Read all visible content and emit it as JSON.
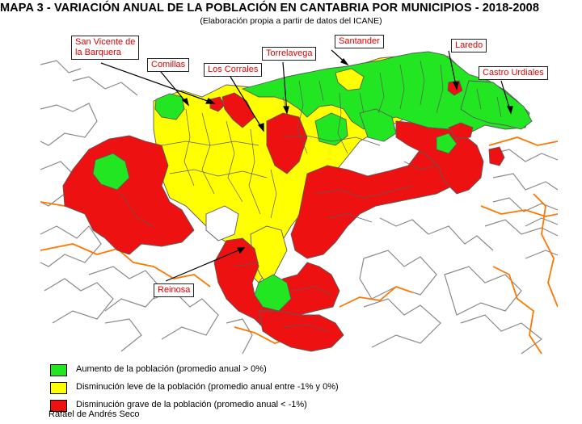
{
  "title": "MAPA 3 - VARIACIÓN ANUAL DE LA POBLACIÓN EN CANTABRIA POR MUNICIPIOS - 2018-2008",
  "subtitle": "(Elaboración propia a partir de datos del ICANE)",
  "colors": {
    "increase": "#22e622",
    "slight_decrease": "#ffff00",
    "severe_decrease": "#ee1111",
    "coast_border": "#ff7700",
    "municipal_border": "#777777"
  },
  "map": {
    "labels": {
      "san_vicente": "San Vicente de\nla Barquera",
      "comillas": "Comillas",
      "los_corrales": "Los Corrales",
      "torrelavega": "Torrelavega",
      "santander": "Santander",
      "laredo": "Laredo",
      "castro_urdiales": "Castro Urdiales",
      "reinosa": "Reinosa"
    }
  },
  "legend": [
    {
      "label": "Aumento de la población (promedio anual > 0%)",
      "color": "#22e622"
    },
    {
      "label": "Disminución leve de la población (promedio anual entre -1% y 0%)",
      "color": "#ffff00"
    },
    {
      "label": "Disminución grave de la población (promedio anual < -1%)",
      "color": "#ee1111"
    }
  ],
  "author": "Rafael de Andrés Seco"
}
